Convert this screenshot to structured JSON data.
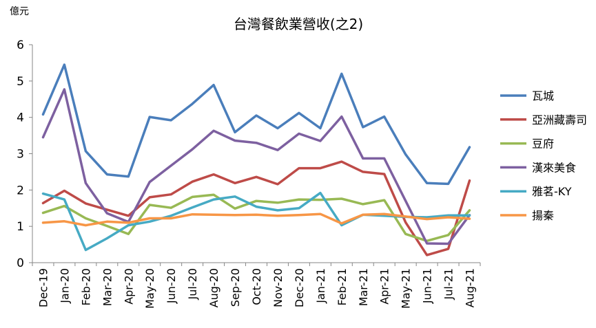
{
  "chart_data": {
    "type": "line",
    "title": "台灣餐飲業營收(之2)",
    "unit_label": "億元",
    "xlabel": "",
    "ylabel": "",
    "ylim": [
      0,
      6
    ],
    "y_ticks": [
      "0",
      "1",
      "2",
      "3",
      "4",
      "5",
      "6"
    ],
    "grid": false,
    "legend_position": "right",
    "categories": [
      "Dec-19",
      "Jan-20",
      "Feb-20",
      "Mar-20",
      "Apr-20",
      "May-20",
      "Jun-20",
      "Jul-20",
      "Aug-20",
      "Sep-20",
      "Oct-20",
      "Nov-20",
      "Dec-20",
      "Jan-21",
      "Feb-21",
      "Mar-21",
      "Apr-21",
      "May-21",
      "Jun-21",
      "Jul-21",
      "Aug-21"
    ],
    "series": [
      {
        "name": "瓦城",
        "color": "#4a7ebb",
        "values": [
          4.08,
          5.45,
          3.07,
          2.43,
          2.37,
          4.01,
          3.92,
          4.37,
          4.89,
          3.59,
          4.05,
          3.7,
          4.12,
          3.7,
          5.2,
          3.73,
          4.02,
          2.98,
          2.19,
          2.17,
          3.18
        ]
      },
      {
        "name": "亞洲藏壽司",
        "color": "#be4b48",
        "values": [
          1.64,
          1.98,
          1.63,
          1.46,
          1.29,
          1.8,
          1.88,
          2.23,
          2.43,
          2.19,
          2.36,
          2.16,
          2.6,
          2.6,
          2.78,
          2.5,
          2.44,
          1.11,
          0.21,
          0.38,
          2.26
        ]
      },
      {
        "name": "豆府",
        "color": "#98b954",
        "values": [
          1.37,
          1.56,
          1.22,
          1.01,
          0.79,
          1.59,
          1.51,
          1.81,
          1.87,
          1.49,
          1.7,
          1.65,
          1.74,
          1.73,
          1.76,
          1.61,
          1.72,
          0.79,
          0.6,
          0.76,
          1.44
        ]
      },
      {
        "name": "漢來美食",
        "color": "#7d60a0",
        "values": [
          3.45,
          4.77,
          2.19,
          1.36,
          1.12,
          2.22,
          2.67,
          3.12,
          3.63,
          3.36,
          3.3,
          3.1,
          3.55,
          3.35,
          4.02,
          2.87,
          2.87,
          1.7,
          0.53,
          0.52,
          1.31
        ]
      },
      {
        "name": "雅茗-KY",
        "color": "#46aac4",
        "values": [
          1.9,
          1.74,
          0.35,
          0.67,
          1.03,
          1.13,
          1.29,
          1.52,
          1.74,
          1.82,
          1.54,
          1.44,
          1.5,
          1.92,
          1.03,
          1.32,
          1.29,
          1.26,
          1.25,
          1.3,
          1.3
        ]
      },
      {
        "name": "揚秦",
        "color": "#f79646",
        "values": [
          1.1,
          1.14,
          1.03,
          1.13,
          1.1,
          1.22,
          1.22,
          1.33,
          1.32,
          1.31,
          1.32,
          1.29,
          1.31,
          1.34,
          1.08,
          1.32,
          1.34,
          1.27,
          1.2,
          1.25,
          1.21
        ]
      }
    ]
  }
}
